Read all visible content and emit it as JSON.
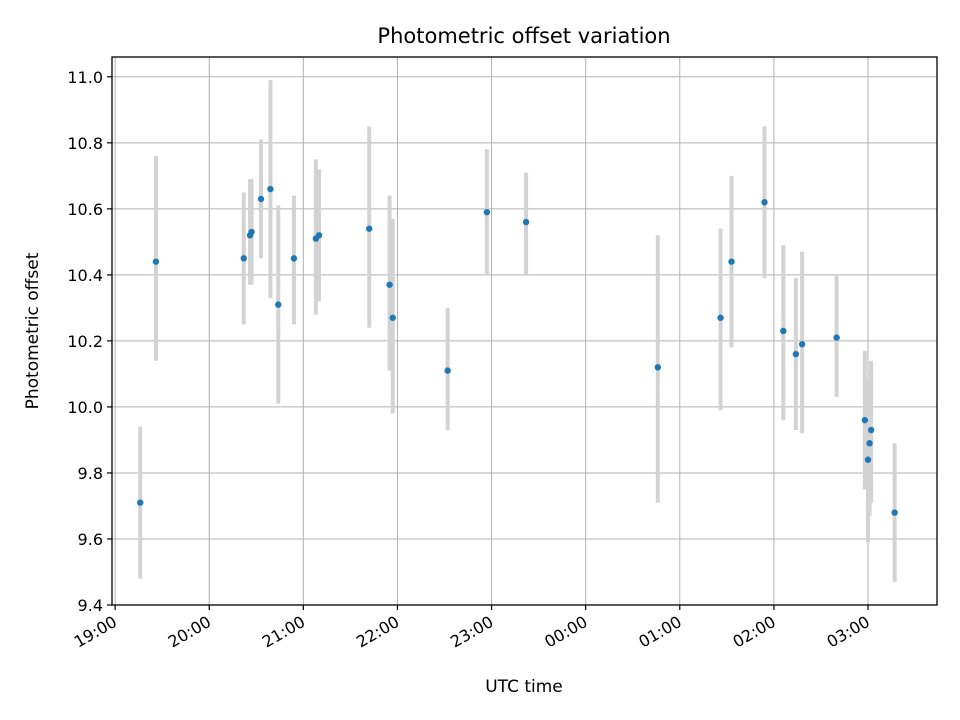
{
  "chart_data": {
    "type": "scatter",
    "title": "Photometric offset variation",
    "xlabel": "UTC time",
    "ylabel": "Photometric offset",
    "x_axis": "time",
    "x_ticks": [
      "19:00",
      "20:00",
      "21:00",
      "22:00",
      "23:00",
      "00:00",
      "01:00",
      "02:00",
      "03:00"
    ],
    "xlim": [
      "18:58",
      "03:44"
    ],
    "ylim": [
      9.4,
      11.06
    ],
    "y_ticks": [
      9.4,
      9.6,
      9.8,
      10.0,
      10.2,
      10.4,
      10.6,
      10.8,
      11.0
    ],
    "y_tick_labels": [
      "9.4",
      "9.6",
      "9.8",
      "10.0",
      "10.2",
      "10.4",
      "10.6",
      "10.8",
      "11.0"
    ],
    "grid": true,
    "error_bars": true,
    "series": [
      {
        "marker_color": "#1f77b4",
        "error_color": "#d3d3d3",
        "points": [
          {
            "x": "19:16",
            "y": 9.71,
            "yerr_low": 9.48,
            "yerr_high": 9.94
          },
          {
            "x": "19:26",
            "y": 10.44,
            "yerr_low": 10.14,
            "yerr_high": 10.76
          },
          {
            "x": "20:22",
            "y": 10.45,
            "yerr_low": 10.25,
            "yerr_high": 10.65
          },
          {
            "x": "20:26",
            "y": 10.52,
            "yerr_low": 10.37,
            "yerr_high": 10.69
          },
          {
            "x": "20:27",
            "y": 10.53,
            "yerr_low": 10.37,
            "yerr_high": 10.69
          },
          {
            "x": "20:33",
            "y": 10.63,
            "yerr_low": 10.45,
            "yerr_high": 10.81
          },
          {
            "x": "20:39",
            "y": 10.66,
            "yerr_low": 10.33,
            "yerr_high": 10.99
          },
          {
            "x": "20:44",
            "y": 10.31,
            "yerr_low": 10.01,
            "yerr_high": 10.61
          },
          {
            "x": "20:54",
            "y": 10.45,
            "yerr_low": 10.25,
            "yerr_high": 10.64
          },
          {
            "x": "21:08",
            "y": 10.51,
            "yerr_low": 10.28,
            "yerr_high": 10.75
          },
          {
            "x": "21:10",
            "y": 10.52,
            "yerr_low": 10.32,
            "yerr_high": 10.72
          },
          {
            "x": "21:42",
            "y": 10.54,
            "yerr_low": 10.24,
            "yerr_high": 10.85
          },
          {
            "x": "21:55",
            "y": 10.37,
            "yerr_low": 10.11,
            "yerr_high": 10.64
          },
          {
            "x": "21:57",
            "y": 10.27,
            "yerr_low": 9.98,
            "yerr_high": 10.57
          },
          {
            "x": "22:32",
            "y": 10.11,
            "yerr_low": 9.93,
            "yerr_high": 10.3
          },
          {
            "x": "22:57",
            "y": 10.59,
            "yerr_low": 10.4,
            "yerr_high": 10.78
          },
          {
            "x": "23:22",
            "y": 10.56,
            "yerr_low": 10.4,
            "yerr_high": 10.71
          },
          {
            "x": "00:46",
            "y": 10.12,
            "yerr_low": 9.71,
            "yerr_high": 10.52
          },
          {
            "x": "01:26",
            "y": 10.27,
            "yerr_low": 9.99,
            "yerr_high": 10.54
          },
          {
            "x": "01:33",
            "y": 10.44,
            "yerr_low": 10.18,
            "yerr_high": 10.7
          },
          {
            "x": "01:54",
            "y": 10.62,
            "yerr_low": 10.39,
            "yerr_high": 10.85
          },
          {
            "x": "02:06",
            "y": 10.23,
            "yerr_low": 9.96,
            "yerr_high": 10.49
          },
          {
            "x": "02:14",
            "y": 10.16,
            "yerr_low": 9.93,
            "yerr_high": 10.39
          },
          {
            "x": "02:18",
            "y": 10.19,
            "yerr_low": 9.92,
            "yerr_high": 10.47
          },
          {
            "x": "02:40",
            "y": 10.21,
            "yerr_low": 10.03,
            "yerr_high": 10.4
          },
          {
            "x": "02:58",
            "y": 9.96,
            "yerr_low": 9.75,
            "yerr_high": 10.17
          },
          {
            "x": "03:00",
            "y": 9.84,
            "yerr_low": 9.59,
            "yerr_high": 10.09
          },
          {
            "x": "03:01",
            "y": 9.89,
            "yerr_low": 9.67,
            "yerr_high": 10.11
          },
          {
            "x": "03:02",
            "y": 9.93,
            "yerr_low": 9.71,
            "yerr_high": 10.14
          },
          {
            "x": "03:17",
            "y": 9.68,
            "yerr_low": 9.47,
            "yerr_high": 9.89
          }
        ]
      }
    ]
  }
}
